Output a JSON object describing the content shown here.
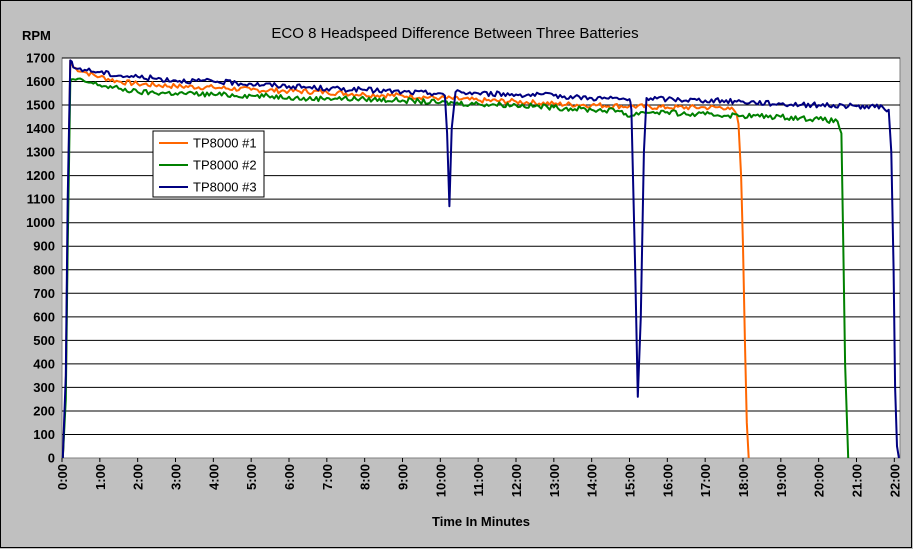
{
  "chart_data": {
    "type": "line",
    "title": "ECO 8 Headspeed Difference Between Three Batteries",
    "ylabel": "RPM",
    "xlabel": "Time In Minutes",
    "ylim": [
      0,
      1700
    ],
    "xlim": [
      0,
      22.15
    ],
    "grid": true,
    "legend_placement": "upper-left inside",
    "background": "#c0c0c0",
    "plot_background": "#ffffff",
    "y_ticks": [
      "0",
      "100",
      "200",
      "300",
      "400",
      "500",
      "600",
      "700",
      "800",
      "900",
      "1000",
      "1100",
      "1200",
      "1300",
      "1400",
      "1500",
      "1600",
      "1700"
    ],
    "x_ticks": [
      "0:00",
      "1:00",
      "2:00",
      "3:00",
      "4:00",
      "5:00",
      "6:00",
      "7:00",
      "8:00",
      "9:00",
      "10:00",
      "11:00",
      "12:00",
      "13:00",
      "14:00",
      "15:00",
      "16:00",
      "17:00",
      "18:00",
      "19:00",
      "20:00",
      "21:00",
      "22:00"
    ],
    "series": [
      {
        "name": "TP8000 #1",
        "color": "#ff6600",
        "points": [
          [
            0.02,
            0
          ],
          [
            0.1,
            300
          ],
          [
            0.15,
            1000
          ],
          [
            0.22,
            1690
          ],
          [
            0.3,
            1660
          ],
          [
            0.6,
            1640
          ],
          [
            1.0,
            1620
          ],
          [
            1.5,
            1600
          ],
          [
            2.0,
            1590
          ],
          [
            3.0,
            1580
          ],
          [
            4.0,
            1575
          ],
          [
            5.0,
            1565
          ],
          [
            6.0,
            1560
          ],
          [
            7.0,
            1555
          ],
          [
            8.0,
            1545
          ],
          [
            9.0,
            1540
          ],
          [
            10.0,
            1530
          ],
          [
            11.0,
            1520
          ],
          [
            12.0,
            1515
          ],
          [
            13.0,
            1505
          ],
          [
            14.0,
            1500
          ],
          [
            15.0,
            1495
          ],
          [
            16.0,
            1490
          ],
          [
            17.0,
            1490
          ],
          [
            17.6,
            1490
          ],
          [
            17.8,
            1470
          ],
          [
            17.88,
            1420
          ],
          [
            17.95,
            1200
          ],
          [
            18.0,
            900
          ],
          [
            18.05,
            500
          ],
          [
            18.1,
            150
          ],
          [
            18.15,
            0
          ]
        ]
      },
      {
        "name": "TP8000 #2",
        "color": "#008000",
        "points": [
          [
            0.02,
            0
          ],
          [
            0.1,
            250
          ],
          [
            0.15,
            900
          ],
          [
            0.22,
            1600
          ],
          [
            0.3,
            1610
          ],
          [
            0.6,
            1600
          ],
          [
            1.0,
            1585
          ],
          [
            1.5,
            1570
          ],
          [
            2.0,
            1555
          ],
          [
            3.0,
            1550
          ],
          [
            4.0,
            1545
          ],
          [
            5.0,
            1540
          ],
          [
            6.0,
            1535
          ],
          [
            6.5,
            1525
          ],
          [
            7.0,
            1530
          ],
          [
            8.0,
            1525
          ],
          [
            9.0,
            1520
          ],
          [
            10.0,
            1510
          ],
          [
            11.0,
            1505
          ],
          [
            12.0,
            1500
          ],
          [
            13.0,
            1490
          ],
          [
            14.0,
            1480
          ],
          [
            14.8,
            1475
          ],
          [
            15.0,
            1450
          ],
          [
            15.3,
            1470
          ],
          [
            16.0,
            1470
          ],
          [
            16.5,
            1460
          ],
          [
            17.0,
            1460
          ],
          [
            18.0,
            1455
          ],
          [
            19.0,
            1450
          ],
          [
            20.0,
            1440
          ],
          [
            20.5,
            1430
          ],
          [
            20.6,
            1380
          ],
          [
            20.65,
            900
          ],
          [
            20.7,
            400
          ],
          [
            20.78,
            0
          ]
        ]
      },
      {
        "name": "TP8000 #3",
        "color": "#000080",
        "points": [
          [
            0.02,
            0
          ],
          [
            0.1,
            350
          ],
          [
            0.15,
            1100
          ],
          [
            0.22,
            1690
          ],
          [
            0.3,
            1660
          ],
          [
            0.6,
            1650
          ],
          [
            1.0,
            1640
          ],
          [
            1.5,
            1625
          ],
          [
            2.0,
            1620
          ],
          [
            3.0,
            1605
          ],
          [
            4.0,
            1600
          ],
          [
            5.0,
            1590
          ],
          [
            6.0,
            1580
          ],
          [
            7.0,
            1570
          ],
          [
            8.0,
            1565
          ],
          [
            9.0,
            1555
          ],
          [
            10.0,
            1550
          ],
          [
            10.12,
            1540
          ],
          [
            10.18,
            1380
          ],
          [
            10.24,
            1070
          ],
          [
            10.3,
            1400
          ],
          [
            10.4,
            1555
          ],
          [
            11.0,
            1550
          ],
          [
            12.0,
            1545
          ],
          [
            13.0,
            1540
          ],
          [
            14.0,
            1530
          ],
          [
            15.0,
            1525
          ],
          [
            15.05,
            1480
          ],
          [
            15.15,
            800
          ],
          [
            15.22,
            260
          ],
          [
            15.3,
            600
          ],
          [
            15.38,
            1300
          ],
          [
            15.45,
            1530
          ],
          [
            16.0,
            1525
          ],
          [
            17.0,
            1520
          ],
          [
            18.0,
            1515
          ],
          [
            19.0,
            1505
          ],
          [
            20.0,
            1500
          ],
          [
            21.0,
            1495
          ],
          [
            21.7,
            1490
          ],
          [
            21.85,
            1480
          ],
          [
            21.92,
            1300
          ],
          [
            21.98,
            800
          ],
          [
            22.02,
            300
          ],
          [
            22.07,
            50
          ],
          [
            22.12,
            0
          ]
        ]
      }
    ]
  }
}
